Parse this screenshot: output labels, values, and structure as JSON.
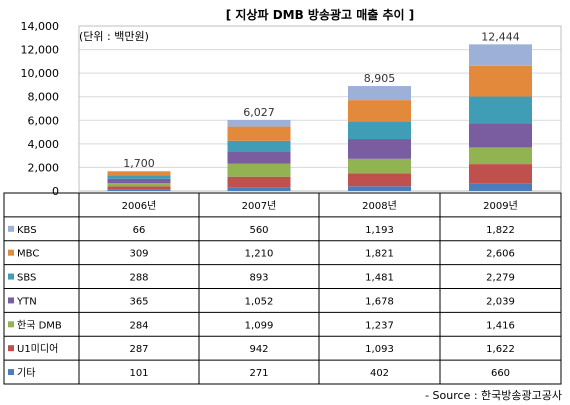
{
  "chart_data": {
    "type": "bar",
    "stacked": true,
    "title": "[ 지상파 DMB 방송광고 매출 추이 ]",
    "unit_label": "(단위 : 백만원)",
    "categories": [
      "2006년",
      "2007년",
      "2008년",
      "2009년"
    ],
    "ylim": [
      0,
      14000
    ],
    "yticks": [
      "0",
      "2,000",
      "4,000",
      "6,000",
      "8,000",
      "10,000",
      "12,000",
      "14,000"
    ],
    "grid": true,
    "totals": [
      1700,
      6027,
      8905,
      12444
    ],
    "total_labels": [
      "1,700",
      "6,027",
      "8,905",
      "12,444"
    ],
    "series": [
      {
        "name": "KBS",
        "color": "#9DB1D8",
        "values": [
          66,
          560,
          1193,
          1822
        ],
        "labels": [
          "66",
          "560",
          "1,193",
          "1,822"
        ]
      },
      {
        "name": "MBC",
        "color": "#E3893C",
        "values": [
          309,
          1210,
          1821,
          2606
        ],
        "labels": [
          "309",
          "1,210",
          "1,821",
          "2,606"
        ]
      },
      {
        "name": "SBS",
        "color": "#3F9DB5",
        "values": [
          288,
          893,
          1481,
          2279
        ],
        "labels": [
          "288",
          "893",
          "1,481",
          "2,279"
        ]
      },
      {
        "name": "YTN",
        "color": "#7A5DA0",
        "values": [
          365,
          1052,
          1678,
          2039
        ],
        "labels": [
          "365",
          "1,052",
          "1,678",
          "2,039"
        ]
      },
      {
        "name": "한국 DMB",
        "color": "#92B352",
        "values": [
          284,
          1099,
          1237,
          1416
        ],
        "labels": [
          "284",
          "1,099",
          "1,237",
          "1,416"
        ]
      },
      {
        "name": "U1미디어",
        "color": "#C0504D",
        "values": [
          287,
          942,
          1093,
          1622
        ],
        "labels": [
          "287",
          "942",
          "1,093",
          "1,622"
        ]
      },
      {
        "name": "기타",
        "color": "#4A7EBB",
        "values": [
          101,
          271,
          402,
          660
        ],
        "labels": [
          "101",
          "271",
          "402",
          "660"
        ]
      }
    ],
    "source": "- Source : 한국방송광고공사"
  }
}
